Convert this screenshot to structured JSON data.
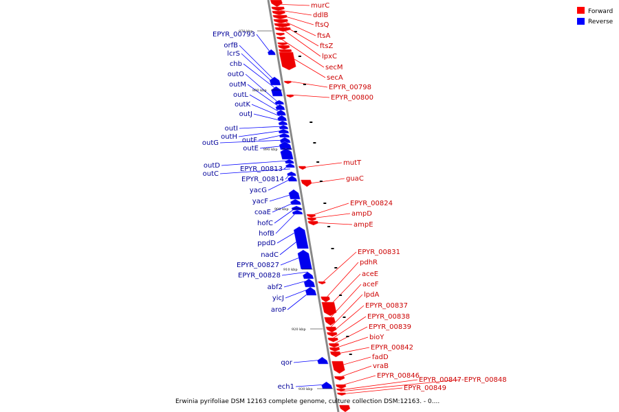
{
  "legend": [
    {
      "label": "Forward",
      "color": "#ff0000"
    },
    {
      "label": "Reverse",
      "color": "#0000ff"
    }
  ],
  "caption": "Erwinia pyrifoliae DSM 12163 complete genome, culture collection DSM:12163. - 0....",
  "ticks": [
    "870 kbp",
    "880 kbp",
    "890 kbp",
    "900 kbp",
    "910 kbp",
    "920 kbp",
    "930 kbp"
  ],
  "forward_genes": [
    "murC",
    "ddlB",
    "ftsQ",
    "ftsA",
    "ftsZ",
    "lpxC",
    "secM",
    "secA",
    "EPYR_00798",
    "EPYR_00800",
    "mutT",
    "guaC",
    "EPYR_00824",
    "ampD",
    "ampE",
    "EPYR_00831",
    "pdhR",
    "aceE",
    "aceF",
    "lpdA",
    "EPYR_00837",
    "EPYR_00838",
    "EPYR_00839",
    "bioY",
    "EPYR_00842",
    "fadD",
    "vraB",
    "EPYR_00846",
    "EPYR_00847-EPYR_00848",
    "EPYR_00849"
  ],
  "reverse_genes": [
    "EPYR_00793",
    "orfB",
    "lcrS",
    "chb",
    "outO",
    "outM",
    "outL",
    "outK",
    "outJ",
    "outI",
    "outH",
    "outF",
    "outG",
    "outE",
    "outD",
    "EPYR_00813",
    "outC",
    "EPYR_00814",
    "yacG",
    "yacF",
    "coaE",
    "hofC",
    "hofB",
    "ppdD",
    "nadC",
    "EPYR_00827",
    "EPYR_00828",
    "abf2",
    "yicJ",
    "aroP",
    "qor",
    "ech1"
  ]
}
